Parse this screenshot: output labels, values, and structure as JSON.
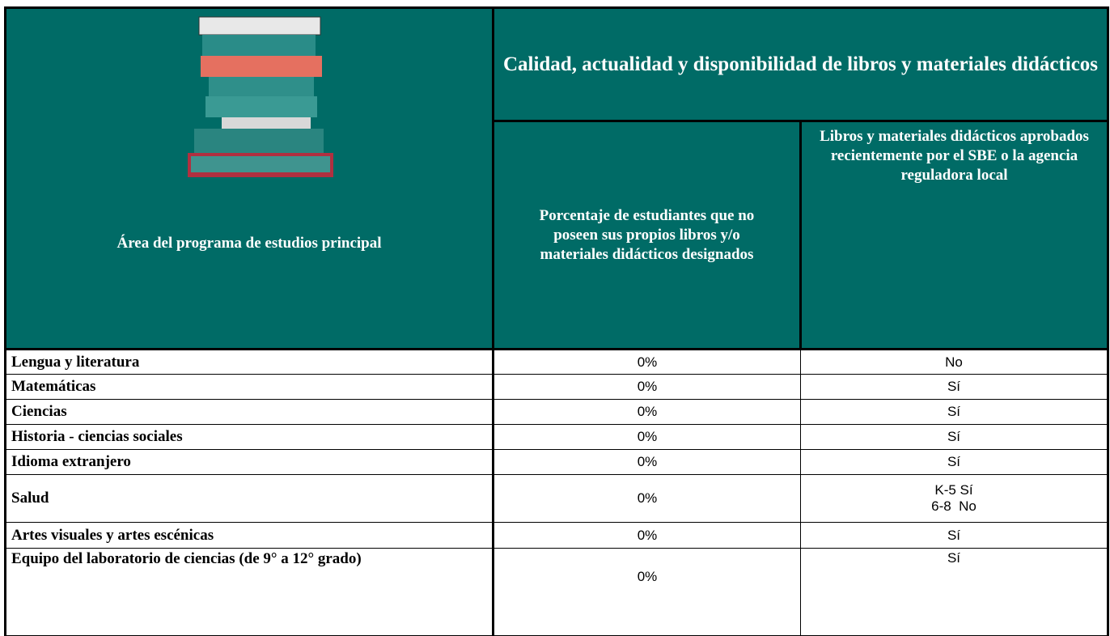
{
  "header": {
    "title": "Calidad, actualidad y disponibilidad de libros y materiales didácticos",
    "columns": [
      "Área del programa de estudios principal",
      "Porcentaje de estudiantes que no poseen sus propios libros y/o materiales didácticos designados",
      "Libros y materiales didácticos aprobados recientemente por el SBE o la agencia reguladora local"
    ]
  },
  "table": {
    "rows": [
      [
        "Lengua y literatura",
        "0%",
        "No"
      ],
      [
        "Matemáticas",
        "0%",
        "Sí"
      ],
      [
        "Ciencias",
        "0%",
        "Sí"
      ],
      [
        "Historia - ciencias sociales",
        "0%",
        "Sí"
      ],
      [
        "Idioma extranjero",
        "0%",
        "Sí"
      ],
      [
        "Salud",
        "0%",
        "K-5 Sí\n6-8  No"
      ],
      [
        "Artes visuales y artes escénicas",
        "0%",
        "Sí"
      ],
      [
        "Equipo del laboratorio de ciencias (de 9° a 12° grado)",
        "0%",
        "Sí"
      ]
    ]
  }
}
